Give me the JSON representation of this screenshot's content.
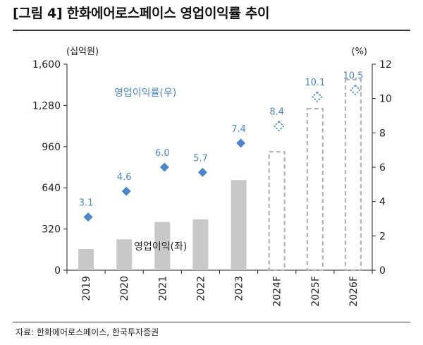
{
  "title": "[그림 4] 한화에어로스페이스 영업이익률 추이",
  "source": "자료: 한화에어로스페이스, 한국투자증권",
  "chart_data": {
    "type": "bar",
    "categories": [
      "2019",
      "2020",
      "2021",
      "2022",
      "2023",
      "2024F",
      "2025F",
      "2026F"
    ],
    "left_axis": {
      "unit": "(십억원)",
      "ylim": [
        0,
        1600
      ],
      "ticks": [
        "0",
        "320",
        "640",
        "960",
        "1,280",
        "1,600"
      ]
    },
    "right_axis": {
      "unit": "(%)",
      "ylim": [
        0,
        12
      ],
      "ticks": [
        "0",
        "2",
        "4",
        "6",
        "8",
        "10",
        "12"
      ]
    },
    "series": [
      {
        "name": "영업이익(좌)",
        "type": "bar",
        "axis": "left",
        "values": [
          165,
          240,
          375,
          395,
          700,
          920,
          1255,
          1480
        ],
        "forecast": [
          false,
          false,
          false,
          false,
          false,
          true,
          true,
          true
        ],
        "color": "#c8c8c8"
      },
      {
        "name": "영업이익률(우)",
        "type": "scatter",
        "axis": "right",
        "values": [
          3.1,
          4.6,
          6.0,
          5.7,
          7.4,
          8.4,
          10.1,
          10.5
        ],
        "labels": [
          "3.1",
          "4.6",
          "6.0",
          "5.7",
          "7.4",
          "8.4",
          "10.1",
          "10.5"
        ],
        "forecast": [
          false,
          false,
          false,
          false,
          false,
          true,
          true,
          true
        ],
        "color": "#4a86c8"
      }
    ],
    "grid": false
  }
}
